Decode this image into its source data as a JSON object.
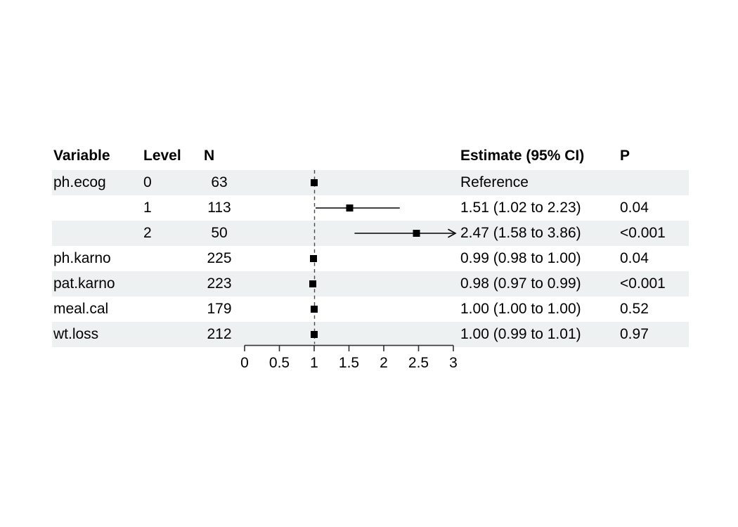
{
  "figure": {
    "description": "Forest plot of hazard ratio estimates with table columns"
  },
  "table": {
    "headers": {
      "variable": "Variable",
      "level": "Level",
      "n": "N",
      "estimate": "Estimate (95% CI)",
      "p": "P"
    }
  },
  "chart_data": {
    "type": "scatter",
    "subtype": "forest-plot",
    "title": "",
    "xlabel": "",
    "xlim": [
      0,
      3
    ],
    "x_ticks": [
      0,
      0.5,
      1,
      1.5,
      2,
      2.5,
      3
    ],
    "x_tick_labels": [
      "0",
      "0.5",
      "1",
      "1.5",
      "2",
      "2.5",
      "3"
    ],
    "reference_line_x": 1,
    "grid": false,
    "rows": [
      {
        "variable": "ph.ecog",
        "level": "0",
        "n": "63",
        "estimate": "Reference",
        "p": "",
        "shaded": true,
        "point": 1.0,
        "ci_low": null,
        "ci_high": null,
        "arrow_right": false
      },
      {
        "variable": "",
        "level": "1",
        "n": "113",
        "estimate": "1.51 (1.02 to 2.23)",
        "p": "0.04",
        "shaded": false,
        "point": 1.51,
        "ci_low": 1.02,
        "ci_high": 2.23,
        "arrow_right": false
      },
      {
        "variable": "",
        "level": "2",
        "n": "50",
        "estimate": "2.47 (1.58 to 3.86)",
        "p": "<0.001",
        "shaded": true,
        "point": 2.47,
        "ci_low": 1.58,
        "ci_high": 3.86,
        "arrow_right": true
      },
      {
        "variable": "ph.karno",
        "level": "",
        "n": "225",
        "estimate": "0.99 (0.98 to 1.00)",
        "p": "0.04",
        "shaded": false,
        "point": 0.99,
        "ci_low": 0.98,
        "ci_high": 1.0,
        "arrow_right": false
      },
      {
        "variable": "pat.karno",
        "level": "",
        "n": "223",
        "estimate": "0.98 (0.97 to 0.99)",
        "p": "<0.001",
        "shaded": true,
        "point": 0.98,
        "ci_low": 0.97,
        "ci_high": 0.99,
        "arrow_right": false
      },
      {
        "variable": "meal.cal",
        "level": "",
        "n": "179",
        "estimate": "1.00 (1.00 to 1.00)",
        "p": "0.52",
        "shaded": false,
        "point": 1.0,
        "ci_low": 1.0,
        "ci_high": 1.0,
        "arrow_right": false
      },
      {
        "variable": "wt.loss",
        "level": "",
        "n": "212",
        "estimate": "1.00 (0.99 to 1.01)",
        "p": "0.97",
        "shaded": true,
        "point": 1.0,
        "ci_low": 0.99,
        "ci_high": 1.01,
        "arrow_right": false
      }
    ]
  },
  "colors": {
    "background": "#ffffff",
    "row_stripe": "#eef1f1",
    "text": "#000000",
    "axis": "#2f2f2f",
    "reference_line": "#4a4a4a",
    "marker": "#000000",
    "ci_line": "#000000"
  }
}
